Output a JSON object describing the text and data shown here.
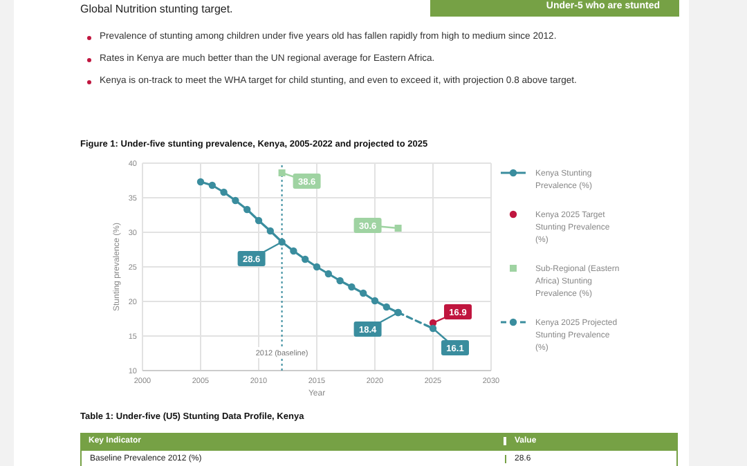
{
  "chart_data": {
    "type": "line",
    "title": "Figure 1:  Under-five stunting prevalence, Kenya, 2005-2022 and projected to 2025",
    "xlabel": "Year",
    "ylabel": "Stunting prevalence (%)",
    "xlim": [
      2000,
      2030
    ],
    "xticks": [
      2000,
      2005,
      2010,
      2015,
      2020,
      2025,
      2030
    ],
    "ylim": [
      10,
      40
    ],
    "yticks": [
      10,
      15,
      20,
      25,
      30,
      35,
      40
    ],
    "grid": true,
    "legend": "right",
    "series": [
      {
        "name": "Kenya Stunting Prevalence (%)",
        "color": "#3a8d9e",
        "marker": "circle",
        "line_style": "solid",
        "x": [
          2005,
          2006,
          2007,
          2008,
          2009,
          2010,
          2011,
          2012,
          2013,
          2014,
          2015,
          2016,
          2017,
          2018,
          2019,
          2020,
          2021,
          2022
        ],
        "values": [
          37.3,
          36.8,
          35.8,
          34.6,
          33.3,
          31.7,
          30.2,
          28.6,
          27.3,
          26.1,
          25.0,
          24.0,
          23.0,
          22.1,
          21.2,
          20.1,
          19.2,
          18.4
        ],
        "value_labels": [
          null,
          null,
          null,
          null,
          null,
          null,
          null,
          "28.6",
          null,
          null,
          null,
          null,
          null,
          null,
          null,
          null,
          null,
          "18.4"
        ]
      },
      {
        "name": "Kenya 2025 Target Stunting Prevalence (%)",
        "type": "scatter",
        "color": "#c0163f",
        "marker": "circle",
        "x": [
          2025
        ],
        "values": [
          16.9
        ],
        "value_labels": [
          "16.9"
        ]
      },
      {
        "name": "Sub-Regional (Eastern Africa) Stunting Prevalence (%)",
        "type": "scatter",
        "color": "#9fd3a2",
        "marker": "square",
        "x": [
          2012,
          2022
        ],
        "values": [
          38.6,
          30.6
        ],
        "value_labels": [
          "38.6",
          "30.6"
        ]
      },
      {
        "name": "Kenya 2025 Projected Stunting Prevalence (%)",
        "type": "line",
        "color": "#3a8d9e",
        "marker": "circle",
        "line_style": "dashed",
        "x": [
          2022,
          2025
        ],
        "values": [
          18.4,
          16.1
        ],
        "value_labels": [
          null,
          "16.1"
        ]
      }
    ],
    "ref_lines": [
      {
        "axis": "x",
        "value": 2012,
        "label": "2012 (baseline)",
        "color": "#3a8d9e",
        "line_style": "dotted"
      }
    ],
    "annotations": [
      "Global Nutrition stunting target.",
      "Prevalence of stunting among children under five years old has fallen rapidly from high to medium since 2012.",
      "Rates in Kenya are much better than the UN regional average for Eastern Africa.",
      "Kenya is on-track to meet the WHA target for child stunting, and even to exceed it, with projection 0.8 above target.",
      "Under-5 who are stunted",
      "Table 1:  Under-five (U5) Stunting Data Profile, Kenya",
      "Key Indicator",
      "Value",
      "Baseline Prevalence 2012 (%)",
      "28.6"
    ]
  }
}
